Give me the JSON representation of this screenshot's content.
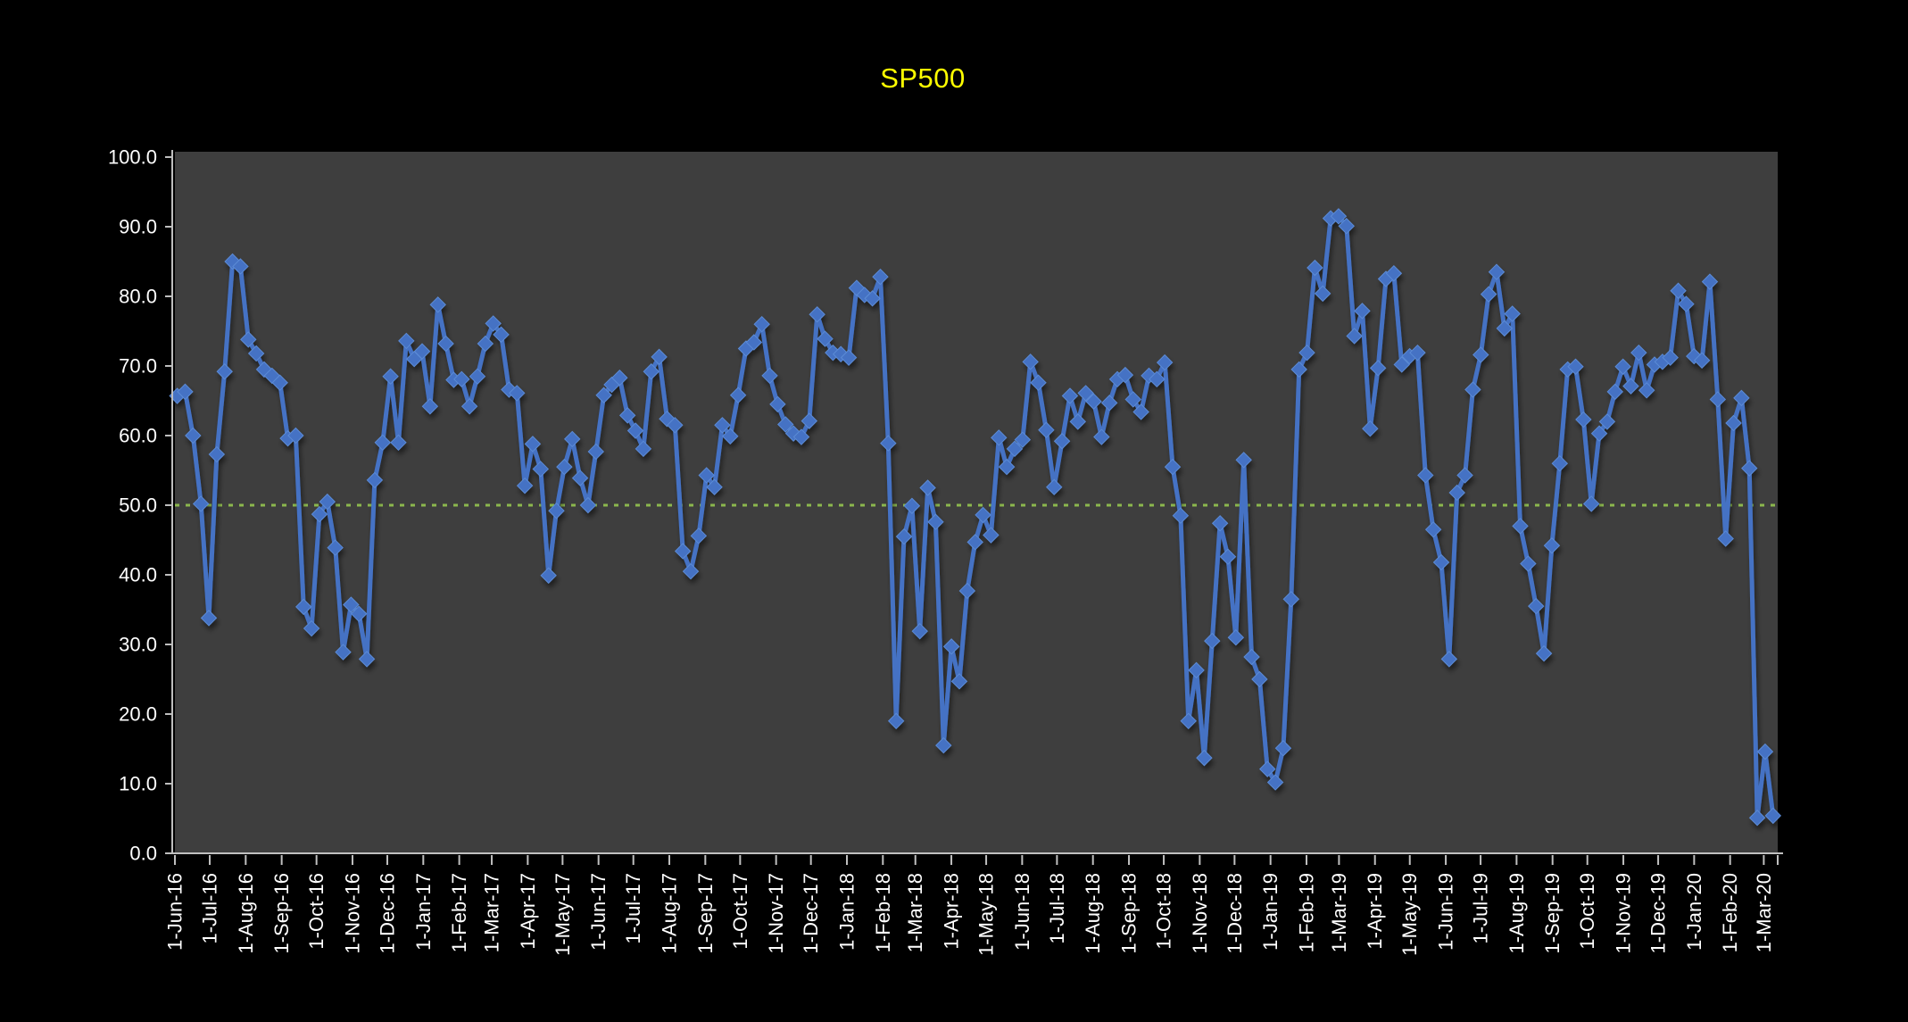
{
  "chart_data": {
    "type": "line",
    "title": "SP500",
    "title_color": "#FFFF00",
    "page_bg_color": "#000000",
    "plot_bg_color": "#3E3E3E",
    "axis_color": "#BFBFBF",
    "label_color": "#FFFFFF",
    "legend": "none",
    "grid": "off",
    "marker": "diamond",
    "reference_line": {
      "value": 50.0,
      "color": "#8CB84E",
      "style": "dotted"
    },
    "ylim": [
      0,
      100
    ],
    "y_tick_step": 10,
    "y_tick_labels": [
      "0.0",
      "10.0",
      "20.0",
      "30.0",
      "40.0",
      "50.0",
      "60.0",
      "70.0",
      "80.0",
      "90.0",
      "100.0"
    ],
    "x_tick_labels": [
      "1-Jun-16",
      "1-Jul-16",
      "1-Aug-16",
      "1-Sep-16",
      "1-Oct-16",
      "1-Nov-16",
      "1-Dec-16",
      "1-Jan-17",
      "1-Feb-17",
      "1-Mar-17",
      "1-Apr-17",
      "1-May-17",
      "1-Jun-17",
      "1-Jul-17",
      "1-Aug-17",
      "1-Sep-17",
      "1-Oct-17",
      "1-Nov-17",
      "1-Dec-17",
      "1-Jan-18",
      "1-Feb-18",
      "1-Mar-18",
      "1-Apr-18",
      "1-May-18",
      "1-Jun-18",
      "1-Jul-18",
      "1-Aug-18",
      "1-Sep-18",
      "1-Oct-18",
      "1-Nov-18",
      "1-Dec-18",
      "1-Jan-19",
      "1-Feb-19",
      "1-Mar-19",
      "1-Apr-19",
      "1-May-19",
      "1-Jun-19",
      "1-Jul-19",
      "1-Aug-19",
      "1-Sep-19",
      "1-Oct-19",
      "1-Nov-19",
      "1-Dec-19",
      "1-Jan-20",
      "1-Feb-20",
      "1-Mar-20"
    ],
    "x_start_month": "Jun-2016",
    "series": [
      {
        "name": "SP500",
        "color": "#4472C4",
        "frequency": "weekly",
        "values": [
          65.7,
          66.3,
          60.0,
          50.2,
          33.8,
          57.3,
          69.2,
          85.0,
          84.3,
          73.8,
          71.8,
          69.5,
          68.6,
          67.6,
          59.6,
          60.0,
          35.4,
          32.3,
          48.7,
          50.5,
          43.9,
          28.9,
          35.7,
          34.4,
          27.9,
          53.6,
          59.0,
          68.5,
          59.0,
          73.6,
          71.0,
          72.1,
          64.2,
          78.8,
          73.2,
          68.0,
          68.1,
          64.2,
          68.5,
          73.2,
          76.1,
          74.5,
          66.6,
          66.1,
          52.8,
          58.8,
          55.2,
          39.9,
          49.2,
          55.5,
          59.5,
          53.9,
          50.0,
          57.7,
          65.8,
          67.3,
          68.3,
          62.9,
          60.7,
          58.1,
          69.2,
          71.3,
          62.4,
          61.5,
          43.4,
          40.5,
          45.6,
          54.3,
          52.6,
          61.5,
          59.9,
          65.8,
          72.5,
          73.4,
          76.0,
          68.6,
          64.5,
          61.6,
          60.3,
          59.8,
          62.1,
          77.4,
          73.9,
          71.9,
          71.7,
          71.2,
          81.2,
          80.2,
          79.7,
          82.8,
          58.9,
          19.0,
          45.5,
          49.9,
          31.9,
          52.5,
          47.6,
          15.5,
          29.7,
          24.7,
          37.7,
          44.7,
          48.6,
          45.7,
          59.7,
          55.5,
          58.1,
          59.4,
          70.6,
          67.6,
          60.8,
          52.6,
          59.2,
          65.7,
          62.0,
          66.1,
          64.9,
          59.8,
          64.7,
          68.1,
          68.7,
          65.2,
          63.4,
          68.6,
          68.1,
          70.5,
          55.5,
          48.5,
          19.0,
          26.3,
          13.7,
          30.5,
          47.4,
          42.6,
          31.0,
          56.5,
          28.2,
          25.0,
          12.1,
          10.2,
          15.1,
          36.5,
          69.5,
          71.9,
          84.1,
          80.4,
          91.2,
          91.5,
          90.1,
          74.3,
          77.9,
          61.0,
          69.7,
          82.5,
          83.3,
          70.2,
          71.4,
          71.9,
          54.3,
          46.5,
          41.8,
          27.9,
          51.8,
          54.3,
          66.6,
          71.6,
          80.3,
          83.5,
          75.4,
          77.5,
          47.0,
          41.6,
          35.5,
          28.7,
          44.2,
          56.0,
          69.5,
          69.9,
          62.3,
          50.2,
          60.3,
          62.0,
          66.3,
          69.9,
          67.1,
          71.9,
          66.5,
          70.2,
          70.6,
          71.2,
          80.8,
          78.9,
          71.4,
          70.8,
          82.1,
          65.2,
          45.2,
          61.8,
          65.4,
          55.3,
          5.1,
          14.6,
          5.4
        ]
      }
    ]
  }
}
